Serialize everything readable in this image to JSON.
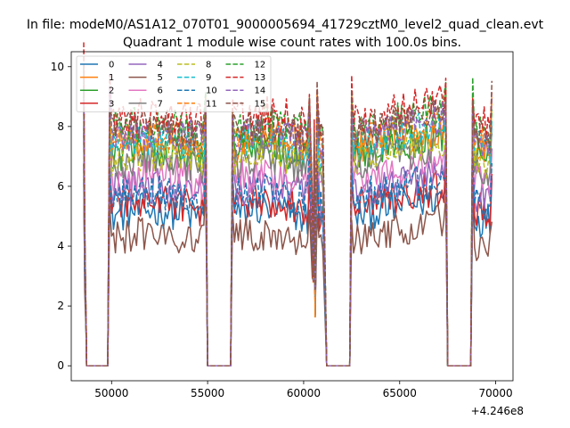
{
  "chart_data": {
    "type": "line",
    "suptitle": "In file: modeM0/AS1A12_070T01_9000005694_41729cztM0_level2_quad_clean.evt",
    "title": "Quadrant 1 module wise count rates with 100.0s bins.",
    "xlabel": "",
    "ylabel": "",
    "x_offset_label": "+4.246e8",
    "xlim": [
      47900,
      70900
    ],
    "ylim": [
      -0.5,
      10.5
    ],
    "xticks": [
      50000,
      55000,
      60000,
      65000,
      70000
    ],
    "yticks": [
      0,
      2,
      4,
      6,
      8,
      10
    ],
    "legend_position": "upper-left",
    "legend_columns": 4,
    "segments": [
      {
        "start": 48600,
        "end": 48680,
        "kind": "fall"
      },
      {
        "start": 48700,
        "end": 49800,
        "kind": "zero"
      },
      {
        "start": 49900,
        "end": 54900,
        "kind": "data"
      },
      {
        "start": 55000,
        "end": 56200,
        "kind": "zero"
      },
      {
        "start": 56300,
        "end": 60300,
        "kind": "data"
      },
      {
        "start": 60450,
        "end": 60650,
        "kind": "spike"
      },
      {
        "start": 60700,
        "end": 61050,
        "kind": "data"
      },
      {
        "start": 61200,
        "end": 62400,
        "kind": "zero"
      },
      {
        "start": 62500,
        "end": 67400,
        "kind": "data"
      },
      {
        "start": 67500,
        "end": 68700,
        "kind": "zero"
      },
      {
        "start": 68800,
        "end": 69800,
        "kind": "data"
      }
    ],
    "series": [
      {
        "name": "0",
        "color": "#1f77b4",
        "dash": "solid",
        "level": 5.0
      },
      {
        "name": "1",
        "color": "#ff7f0e",
        "dash": "solid",
        "level": 7.3
      },
      {
        "name": "2",
        "color": "#2ca02c",
        "dash": "solid",
        "level": 7.0
      },
      {
        "name": "3",
        "color": "#d62728",
        "dash": "solid",
        "level": 5.3
      },
      {
        "name": "4",
        "color": "#9467bd",
        "dash": "solid",
        "level": 5.8
      },
      {
        "name": "5",
        "color": "#8c564b",
        "dash": "solid",
        "level": 4.2
      },
      {
        "name": "6",
        "color": "#e377c2",
        "dash": "solid",
        "level": 6.2
      },
      {
        "name": "7",
        "color": "#7f7f7f",
        "dash": "solid",
        "level": 6.7
      },
      {
        "name": "8",
        "color": "#bcbd22",
        "dash": "dashed",
        "level": 6.9
      },
      {
        "name": "9",
        "color": "#17becf",
        "dash": "dashed",
        "level": 7.4
      },
      {
        "name": "10",
        "color": "#1f77b4",
        "dash": "dashed",
        "level": 5.6
      },
      {
        "name": "11",
        "color": "#ff7f0e",
        "dash": "dashed",
        "level": 7.5
      },
      {
        "name": "12",
        "color": "#2ca02c",
        "dash": "dashed",
        "level": 7.9
      },
      {
        "name": "13",
        "color": "#d62728",
        "dash": "dashed",
        "level": 8.2
      },
      {
        "name": "14",
        "color": "#9467bd",
        "dash": "dashed",
        "level": 7.6
      },
      {
        "name": "15",
        "color": "#8c564b",
        "dash": "dashed",
        "level": 7.8
      }
    ]
  }
}
